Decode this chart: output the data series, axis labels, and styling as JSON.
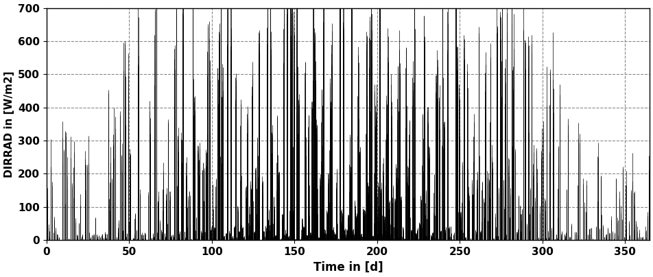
{
  "xlabel": "Time in [d]",
  "ylabel": "DIRRAD in [W/m2]",
  "xlim": [
    0,
    365
  ],
  "ylim": [
    0,
    700
  ],
  "xticks": [
    0,
    50,
    100,
    150,
    200,
    250,
    300,
    350
  ],
  "yticks": [
    0,
    100,
    200,
    300,
    400,
    500,
    600,
    700
  ],
  "grid_color": "#888888",
  "line_color": "#000000",
  "bg_color": "#ffffff",
  "figsize": [
    9.53,
    4.04
  ],
  "dpi": 100,
  "xlabel_fontsize": 12,
  "ylabel_fontsize": 11,
  "tick_fontsize": 11,
  "xlabel_fontweight": "bold",
  "ylabel_fontweight": "bold",
  "tick_fontweight": "bold",
  "grid_linestyle": "--",
  "linewidth": 0.5
}
